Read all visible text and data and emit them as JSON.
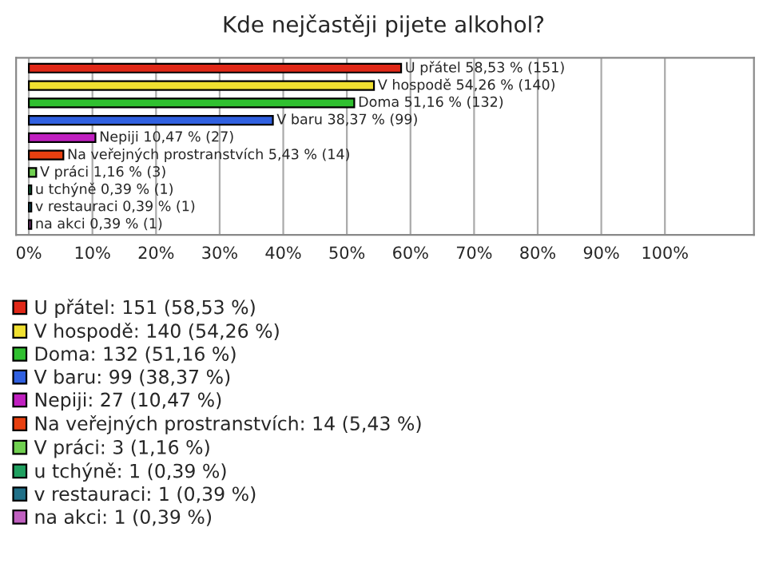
{
  "chart_data": {
    "type": "bar",
    "orientation": "horizontal",
    "title": "Kde nejčastěji pijete alkohol?",
    "categories": [
      "U přátel 58,53 % (151)",
      "V hospodě 54,26 % (140)",
      "Doma 51,16 % (132)",
      "V baru 38,37 % (99)",
      "Nepiji 10,47 % (27)",
      "Na veřejných prostranstvích 5,43 % (14)",
      "V práci 1,16 % (3)",
      "u tchýně 0,39 % (1)",
      "v restauraci 0,39 % (1)",
      "na akci 0,39 % (1)"
    ],
    "series": [
      {
        "name": "U přátel: 151 (58,53 %)",
        "color": "#e02818",
        "values": [
          58.53,
          null,
          null,
          null,
          null,
          null,
          null,
          null,
          null,
          null
        ]
      },
      {
        "name": "V hospodě: 140 (54,26 %)",
        "color": "#f0e030",
        "values": [
          null,
          54.26,
          null,
          null,
          null,
          null,
          null,
          null,
          null,
          null
        ]
      },
      {
        "name": "Doma: 132 (51,16 %)",
        "color": "#30c030",
        "values": [
          null,
          null,
          51.16,
          null,
          null,
          null,
          null,
          null,
          null,
          null
        ]
      },
      {
        "name": "V baru: 99 (38,37 %)",
        "color": "#3060e0",
        "values": [
          null,
          null,
          null,
          38.37,
          null,
          null,
          null,
          null,
          null,
          null
        ]
      },
      {
        "name": "Nepiji: 27 (10,47 %)",
        "color": "#c020c0",
        "values": [
          null,
          null,
          null,
          null,
          10.47,
          null,
          null,
          null,
          null,
          null
        ]
      },
      {
        "name": "Na veřejných prostranstvích: 14 (5,43 %)",
        "color": "#e84010",
        "values": [
          null,
          null,
          null,
          null,
          null,
          5.43,
          null,
          null,
          null,
          null
        ]
      },
      {
        "name": "V práci: 3 (1,16 %)",
        "color": "#70d050",
        "values": [
          null,
          null,
          null,
          null,
          null,
          null,
          1.16,
          null,
          null,
          null
        ]
      },
      {
        "name": "u tchýně: 1 (0,39 %)",
        "color": "#20a060",
        "values": [
          null,
          null,
          null,
          null,
          null,
          null,
          null,
          0.39,
          null,
          null
        ]
      },
      {
        "name": "v restauraci: 1 (0,39 %)",
        "color": "#207088",
        "values": [
          null,
          null,
          null,
          null,
          null,
          null,
          null,
          null,
          0.39,
          null
        ]
      },
      {
        "name": "na akci: 1 (0,39 %)",
        "color": "#c060c0",
        "values": [
          null,
          null,
          null,
          null,
          null,
          null,
          null,
          null,
          null,
          0.39
        ]
      }
    ],
    "xlim": [
      -2,
      114
    ],
    "xticks": [
      {
        "value": 0,
        "label": "0%"
      },
      {
        "value": 10,
        "label": "10%"
      },
      {
        "value": 20,
        "label": "20%"
      },
      {
        "value": 30,
        "label": "30%"
      },
      {
        "value": 40,
        "label": "40%"
      },
      {
        "value": 50,
        "label": "50%"
      },
      {
        "value": 60,
        "label": "60%"
      },
      {
        "value": 70,
        "label": "70%"
      },
      {
        "value": 80,
        "label": "80%"
      },
      {
        "value": 90,
        "label": "90%"
      },
      {
        "value": 100,
        "label": "100%"
      }
    ],
    "grid": "x",
    "legend": "bottom"
  }
}
